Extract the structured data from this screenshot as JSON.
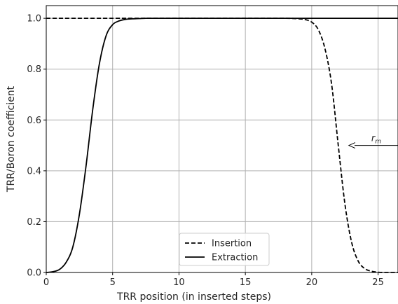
{
  "chart_data": {
    "type": "line",
    "title": "",
    "xlabel": "TRR position (in inserted steps)",
    "ylabel": "TRR/Boron coefficient",
    "xlim": [
      0,
      26.5
    ],
    "ylim": [
      0,
      1.05
    ],
    "xticks": [
      0,
      5,
      10,
      15,
      20,
      25
    ],
    "xtick_labels": [
      "0",
      "5",
      "10",
      "15",
      "20",
      "25"
    ],
    "yticks": [
      0.0,
      0.2,
      0.4,
      0.6,
      0.8,
      1.0
    ],
    "ytick_labels": [
      "0.0",
      "0.2",
      "0.4",
      "0.6",
      "0.8",
      "1.0"
    ],
    "grid": true,
    "legend_position": "lower-center",
    "series": [
      {
        "name": "Insertion",
        "style": "dashed",
        "color": "#000000",
        "x": [
          0,
          5,
          10,
          15,
          18,
          19,
          19.5,
          20,
          20.5,
          21,
          21.5,
          22,
          22.5,
          23,
          23.5,
          24,
          24.5,
          25,
          25.5,
          26.5
        ],
        "y": [
          1.0,
          1.0,
          1.0,
          1.0,
          1.0,
          0.998,
          0.995,
          0.985,
          0.955,
          0.88,
          0.74,
          0.5,
          0.27,
          0.12,
          0.045,
          0.015,
          0.005,
          0.001,
          0.0,
          0.0
        ]
      },
      {
        "name": "Extraction",
        "style": "solid",
        "color": "#000000",
        "x": [
          0,
          0.5,
          1,
          1.5,
          2,
          2.5,
          3,
          3.5,
          4,
          4.5,
          5,
          5.5,
          6,
          6.5,
          7,
          7.5,
          8,
          10,
          15,
          20,
          25,
          26.5
        ],
        "y": [
          0.0,
          0.003,
          0.012,
          0.04,
          0.1,
          0.23,
          0.42,
          0.64,
          0.82,
          0.93,
          0.975,
          0.99,
          0.996,
          0.998,
          0.999,
          1.0,
          1.0,
          1.0,
          1.0,
          1.0,
          1.0,
          1.0
        ]
      }
    ],
    "annotations": [
      {
        "text": "r_m",
        "display": "r",
        "subscript": "m",
        "x": 26.5,
        "y": 0.5,
        "arrow_to_x": 22.8,
        "arrow_to_y": 0.5
      }
    ]
  }
}
